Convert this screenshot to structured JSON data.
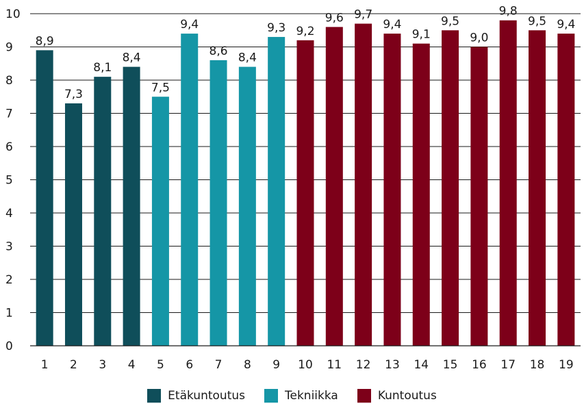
{
  "chart_data": {
    "type": "bar",
    "title": "",
    "xlabel": "",
    "ylabel": "",
    "ylim": [
      0,
      10
    ],
    "yticks": [
      "0",
      "1",
      "2",
      "3",
      "4",
      "5",
      "6",
      "7",
      "8",
      "9",
      "10"
    ],
    "grid": true,
    "legend_position": "bottom",
    "categories": [
      "1",
      "2",
      "3",
      "4",
      "5",
      "6",
      "7",
      "8",
      "9",
      "10",
      "11",
      "12",
      "13",
      "14",
      "15",
      "16",
      "17",
      "18",
      "19"
    ],
    "values": [
      8.9,
      7.3,
      8.1,
      8.4,
      7.5,
      9.4,
      8.6,
      8.4,
      9.3,
      9.2,
      9.6,
      9.7,
      9.4,
      9.1,
      9.5,
      9.0,
      9.8,
      9.5,
      9.4
    ],
    "value_labels": [
      "8,9",
      "7,3",
      "8,1",
      "8,4",
      "7,5",
      "9,4",
      "8,6",
      "8,4",
      "9,3",
      "9,2",
      "9,6",
      "9,7",
      "9,4",
      "9,1",
      "9,5",
      "9,0",
      "9,8",
      "9,5",
      "9,4"
    ],
    "groups": [
      0,
      0,
      0,
      0,
      1,
      1,
      1,
      1,
      1,
      2,
      2,
      2,
      2,
      2,
      2,
      2,
      2,
      2,
      2
    ],
    "series": [
      {
        "name": "Etäkuntoutus",
        "color": "#0f4e5a"
      },
      {
        "name": "Tekniikka",
        "color": "#1596a6"
      },
      {
        "name": "Kuntoutus",
        "color": "#7d0019"
      }
    ]
  }
}
